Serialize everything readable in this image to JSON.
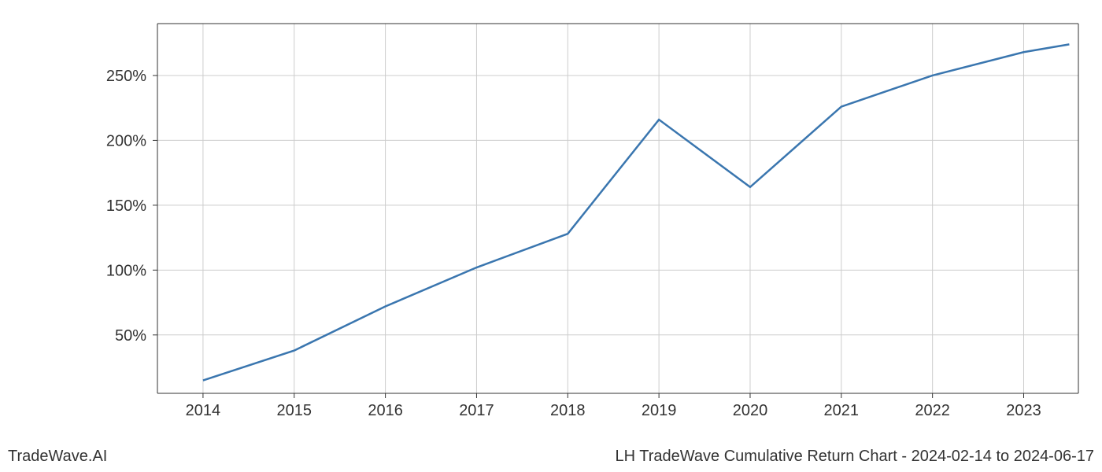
{
  "chart": {
    "type": "line",
    "x_values": [
      2014,
      2015,
      2016,
      2017,
      2018,
      2019,
      2020,
      2021,
      2022,
      2023,
      2023.5
    ],
    "y_values": [
      15,
      38,
      72,
      102,
      128,
      216,
      164,
      226,
      250,
      268,
      274
    ],
    "x_ticks": [
      2014,
      2015,
      2016,
      2017,
      2018,
      2019,
      2020,
      2021,
      2022,
      2023
    ],
    "y_ticks": [
      50,
      100,
      150,
      200,
      250
    ],
    "y_tick_suffix": "%",
    "xlim": [
      2013.5,
      2023.6
    ],
    "ylim": [
      5,
      290
    ],
    "line_color": "#3a76af",
    "line_width": 2.5,
    "grid_color": "#cccccc",
    "axis_color": "#333333",
    "background_color": "#ffffff",
    "tick_fontsize": 20,
    "footer_fontsize": 20
  },
  "footer": {
    "left": "TradeWave.AI",
    "right": "LH TradeWave Cumulative Return Chart - 2024-02-14 to 2024-06-17"
  }
}
